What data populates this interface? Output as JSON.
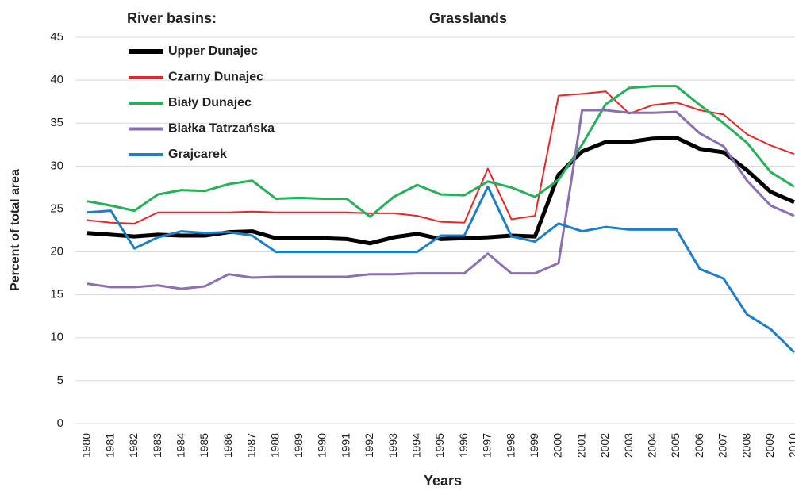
{
  "chart_data": {
    "type": "line",
    "title": "Grasslands",
    "legend_title": "River basins:",
    "x_label": "Years",
    "y_label": "Percent of total area",
    "categories": [
      "1980",
      "1981",
      "1982",
      "1983",
      "1984",
      "1985",
      "1986",
      "1987",
      "1988",
      "1989",
      "1990",
      "1991",
      "1992",
      "1993",
      "1994",
      "1995",
      "1996",
      "1997",
      "1998",
      "1999",
      "2000",
      "2001",
      "2002",
      "2003",
      "2004",
      "2005",
      "2006",
      "2007",
      "2008",
      "2009",
      "2010"
    ],
    "ylim": [
      0,
      45
    ],
    "yticks": [
      0,
      5,
      10,
      15,
      20,
      25,
      30,
      35,
      40,
      45
    ],
    "grid": true,
    "legend": "upper-left",
    "series": [
      {
        "name": "Upper Dunajec",
        "color": "#000000",
        "width": 5,
        "values": [
          22.2,
          22.0,
          21.8,
          22.0,
          21.9,
          21.9,
          22.3,
          22.4,
          21.6,
          21.6,
          21.6,
          21.5,
          21.0,
          21.7,
          22.1,
          21.5,
          21.6,
          21.7,
          21.9,
          21.8,
          29.0,
          31.7,
          32.8,
          32.8,
          33.2,
          33.3,
          32.0,
          31.6,
          29.5,
          27.0,
          25.8
        ]
      },
      {
        "name": "Czarny Dunajec",
        "color": "#e8262a",
        "width": 2,
        "values": [
          23.7,
          23.4,
          23.3,
          24.6,
          24.6,
          24.6,
          24.6,
          24.7,
          24.6,
          24.6,
          24.6,
          24.6,
          24.5,
          24.5,
          24.2,
          23.5,
          23.4,
          29.7,
          23.8,
          24.2,
          38.2,
          38.4,
          38.7,
          36.1,
          37.1,
          37.4,
          36.5,
          36.0,
          33.7,
          32.4,
          31.4
        ]
      },
      {
        "name": "Biały Dunajec",
        "color": "#25b05a",
        "width": 3,
        "values": [
          25.9,
          25.4,
          24.8,
          26.7,
          27.2,
          27.1,
          27.9,
          28.3,
          26.2,
          26.3,
          26.2,
          26.2,
          24.1,
          26.4,
          27.8,
          26.7,
          26.6,
          28.2,
          27.5,
          26.4,
          28.4,
          32.5,
          37.2,
          39.1,
          39.3,
          39.3,
          37.1,
          35.0,
          32.7,
          29.3,
          27.6
        ]
      },
      {
        "name": "Białka Tatrzańska",
        "color": "#8a70b0",
        "width": 3,
        "values": [
          16.3,
          15.9,
          15.9,
          16.1,
          15.7,
          16.0,
          17.4,
          17.0,
          17.1,
          17.1,
          17.1,
          17.1,
          17.4,
          17.4,
          17.5,
          17.5,
          17.5,
          19.8,
          17.5,
          17.5,
          18.7,
          36.5,
          36.5,
          36.2,
          36.2,
          36.3,
          33.8,
          32.3,
          28.3,
          25.4,
          24.2
        ]
      },
      {
        "name": "Grajcarek",
        "color": "#1f7fc4",
        "width": 3,
        "values": [
          24.6,
          24.8,
          20.4,
          21.7,
          22.4,
          22.2,
          22.3,
          21.9,
          20.0,
          20.0,
          20.0,
          20.0,
          20.0,
          20.0,
          20.0,
          21.9,
          21.9,
          27.6,
          21.8,
          21.2,
          23.3,
          22.4,
          22.9,
          22.6,
          22.6,
          22.6,
          18.0,
          16.9,
          12.7,
          11.0,
          8.3
        ]
      }
    ]
  }
}
